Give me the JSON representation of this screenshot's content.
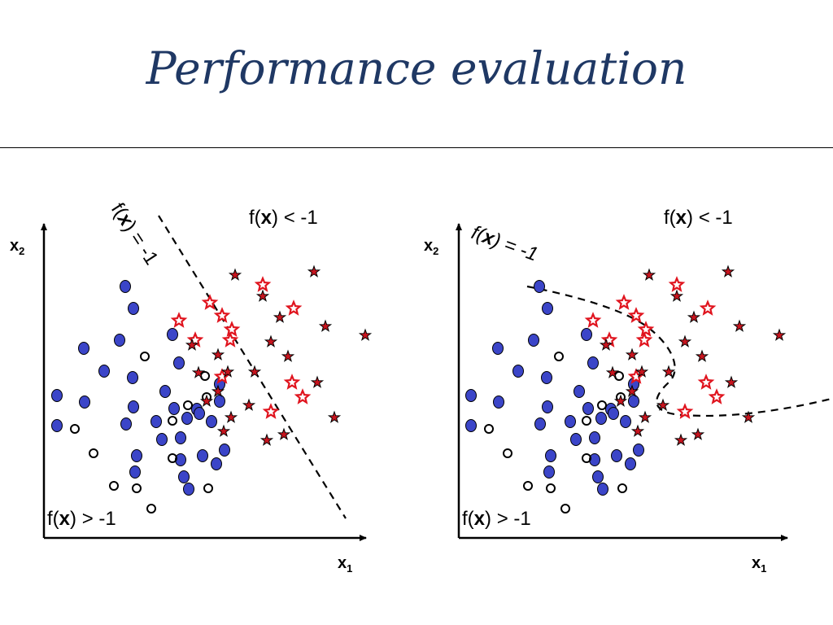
{
  "slide": {
    "title": "Performance evaluation"
  },
  "panels": [
    {
      "id": "left",
      "axis_x_label": "x",
      "axis_x_sub": "1",
      "axis_y_label": "x",
      "axis_y_sub": "2",
      "region_upper": {
        "pre": "f(",
        "bold": "x",
        "post": ") < -1"
      },
      "region_lower": {
        "pre": "f(",
        "bold": "x",
        "post": ") > -1"
      },
      "boundary": {
        "pre": "f(",
        "bold": "x",
        "post": ") = -1"
      }
    },
    {
      "id": "right",
      "axis_x_label": "x",
      "axis_x_sub": "1",
      "axis_y_label": "x",
      "axis_y_sub": "2",
      "region_upper": {
        "pre": "f(",
        "bold": "x",
        "post": ") < -1"
      },
      "region_lower": {
        "pre": "f(",
        "bold": "x",
        "post": ") > -1"
      },
      "boundary": {
        "pre": "f(",
        "bold": "x",
        "post": ") = -1"
      }
    }
  ],
  "legend_markers": {
    "blue_dot": "#3b45c8",
    "red_star": "#e0141e",
    "dark_star": "#c8141e",
    "open_circle": "#000000"
  }
}
